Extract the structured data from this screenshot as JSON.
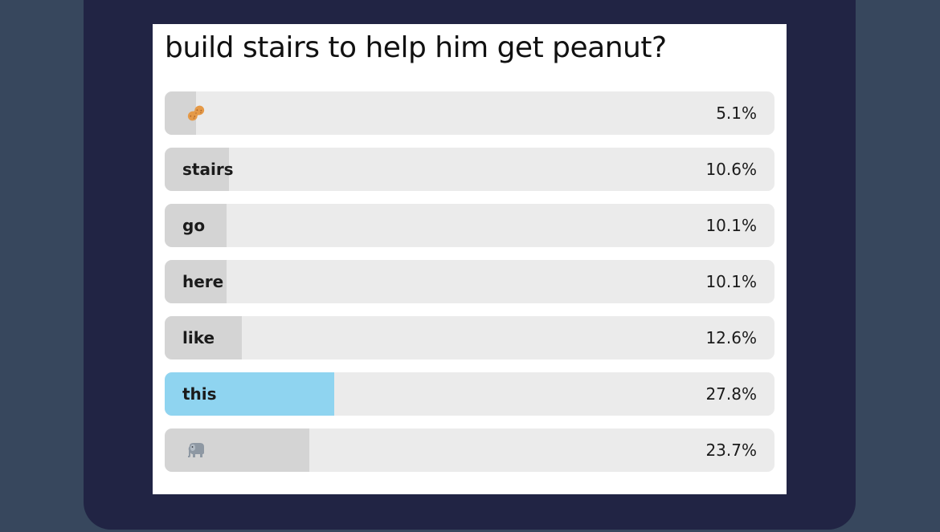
{
  "poll": {
    "question": "build stairs to help him get peanut?",
    "options": [
      {
        "label": "",
        "icon": "peanut-icon",
        "percent": "5.1%",
        "fraction": 0.051
      },
      {
        "label": "stairs",
        "percent": "10.6%",
        "fraction": 0.106
      },
      {
        "label": "go",
        "percent": "10.1%",
        "fraction": 0.101
      },
      {
        "label": "here",
        "percent": "10.1%",
        "fraction": 0.101
      },
      {
        "label": "like",
        "percent": "12.6%",
        "fraction": 0.126
      },
      {
        "label": "this",
        "percent": "27.8%",
        "fraction": 0.278,
        "selected": true
      },
      {
        "label": "",
        "icon": "elephant-icon",
        "percent": "23.7%",
        "fraction": 0.237
      }
    ]
  },
  "colors": {
    "page_background": "#37475d",
    "frame_background": "#212444",
    "card_background": "#ffffff",
    "bar_track": "#ebebeb",
    "bar_fill": "#d4d4d4",
    "bar_fill_selected": "#8fd4f0"
  }
}
